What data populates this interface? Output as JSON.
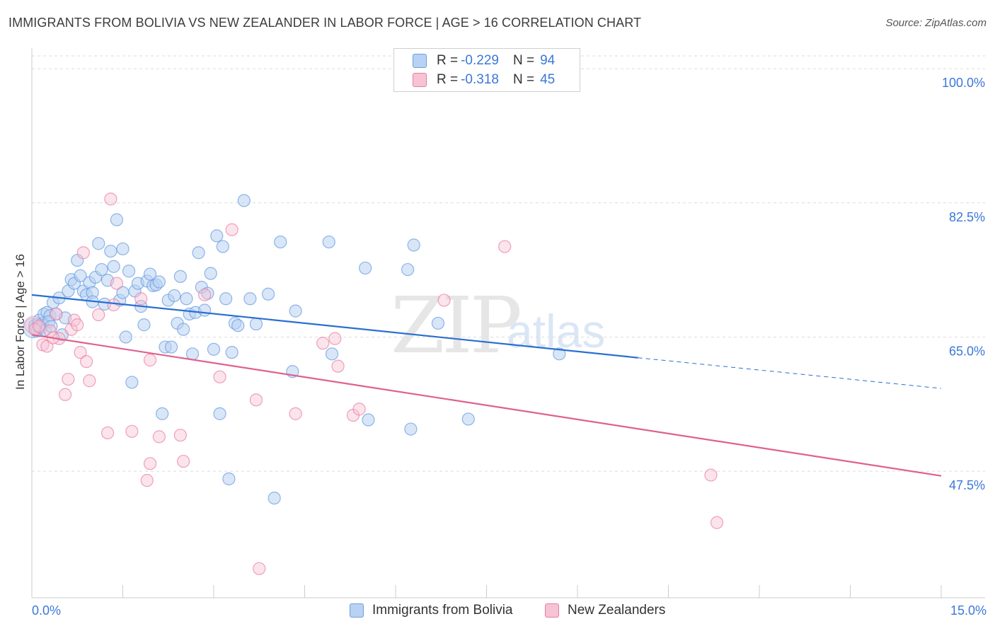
{
  "title": "IMMIGRANTS FROM BOLIVIA VS NEW ZEALANDER IN LABOR FORCE | AGE > 16 CORRELATION CHART",
  "source": "Source: ZipAtlas.com",
  "watermark": {
    "zip": "ZIP",
    "atlas": "atlas"
  },
  "colors": {
    "blue": "#6a9fe0",
    "blue_fill": "#b9d2f3",
    "pink": "#e87ca0",
    "pink_fill": "#f6c3d4",
    "blue_line": "#2a6fd0",
    "pink_line": "#e0608e",
    "axis_text": "#3a78d8"
  },
  "legend": {
    "rows": [
      {
        "r_label": "R =",
        "r_value": "-0.229",
        "n_label": "N =",
        "n_value": "94"
      },
      {
        "r_label": "R =",
        "r_value": "-0.318",
        "n_label": "N =",
        "n_value": "45"
      }
    ]
  },
  "bottom_legend": [
    "Immigrants from Bolivia",
    "New Zealanders"
  ],
  "chart_data": {
    "type": "scatter",
    "title": "IMMIGRANTS FROM BOLIVIA VS NEW ZEALANDER IN LABOR FORCE | AGE > 16 CORRELATION CHART",
    "xlabel": "",
    "ylabel": "In Labor Force | Age > 16",
    "xlim": [
      0,
      15
    ],
    "ylim": [
      31,
      102.5
    ],
    "x_tick_labels": [
      "0.0%",
      "15.0%"
    ],
    "y_ticks": [
      47.5,
      65.0,
      82.5,
      100.0
    ],
    "y_tick_labels": [
      "47.5%",
      "65.0%",
      "82.5%",
      "100.0%"
    ],
    "grid": true,
    "series": [
      {
        "name": "Immigrants from Bolivia",
        "points": [
          [
            0.05,
            66.5
          ],
          [
            0.1,
            66.6
          ],
          [
            0.12,
            67.2
          ],
          [
            0.18,
            66.8
          ],
          [
            0.2,
            68.0
          ],
          [
            0.25,
            68.2
          ],
          [
            0.3,
            67.8
          ],
          [
            0.35,
            69.5
          ],
          [
            0.4,
            68.0
          ],
          [
            0.45,
            70.1
          ],
          [
            0.5,
            65.3
          ],
          [
            0.55,
            67.5
          ],
          [
            0.6,
            71.0
          ],
          [
            0.65,
            72.5
          ],
          [
            0.7,
            72.0
          ],
          [
            0.75,
            75.0
          ],
          [
            0.8,
            73.0
          ],
          [
            0.85,
            71.0
          ],
          [
            0.9,
            70.5
          ],
          [
            0.95,
            72.1
          ],
          [
            1.0,
            70.8
          ],
          [
            1.0,
            69.6
          ],
          [
            1.05,
            72.8
          ],
          [
            1.1,
            77.2
          ],
          [
            1.15,
            73.8
          ],
          [
            1.2,
            69.3
          ],
          [
            1.25,
            72.4
          ],
          [
            1.3,
            76.2
          ],
          [
            1.35,
            74.2
          ],
          [
            1.4,
            80.3
          ],
          [
            1.45,
            69.8
          ],
          [
            1.5,
            76.5
          ],
          [
            1.5,
            70.8
          ],
          [
            1.55,
            65.0
          ],
          [
            1.6,
            73.6
          ],
          [
            1.65,
            59.1
          ],
          [
            1.7,
            71.0
          ],
          [
            1.75,
            72.0
          ],
          [
            1.8,
            69.0
          ],
          [
            1.85,
            66.6
          ],
          [
            1.9,
            72.3
          ],
          [
            1.95,
            73.2
          ],
          [
            2.0,
            71.7
          ],
          [
            2.05,
            71.8
          ],
          [
            2.1,
            72.2
          ],
          [
            2.15,
            55.0
          ],
          [
            2.2,
            63.7
          ],
          [
            2.25,
            69.8
          ],
          [
            2.3,
            63.7
          ],
          [
            2.35,
            70.4
          ],
          [
            2.4,
            66.8
          ],
          [
            2.45,
            72.9
          ],
          [
            2.5,
            66.0
          ],
          [
            2.55,
            70.0
          ],
          [
            2.6,
            68.0
          ],
          [
            2.65,
            62.8
          ],
          [
            2.7,
            68.2
          ],
          [
            2.75,
            76.0
          ],
          [
            2.8,
            71.5
          ],
          [
            2.85,
            68.5
          ],
          [
            2.9,
            70.7
          ],
          [
            2.95,
            73.3
          ],
          [
            3.0,
            63.4
          ],
          [
            3.05,
            78.2
          ],
          [
            3.1,
            55.0
          ],
          [
            3.15,
            76.8
          ],
          [
            3.2,
            70.0
          ],
          [
            3.25,
            46.5
          ],
          [
            3.3,
            63.0
          ],
          [
            3.35,
            66.8
          ],
          [
            3.4,
            66.5
          ],
          [
            3.5,
            82.8
          ],
          [
            3.6,
            70.0
          ],
          [
            3.7,
            66.7
          ],
          [
            3.9,
            70.6
          ],
          [
            4.0,
            44.0
          ],
          [
            4.1,
            77.4
          ],
          [
            4.3,
            60.5
          ],
          [
            4.35,
            68.4
          ],
          [
            4.9,
            77.4
          ],
          [
            4.95,
            62.8
          ],
          [
            5.5,
            74.0
          ],
          [
            5.55,
            54.2
          ],
          [
            6.2,
            73.8
          ],
          [
            6.25,
            53.0
          ],
          [
            6.3,
            77.0
          ],
          [
            6.7,
            66.8
          ],
          [
            7.2,
            54.3
          ],
          [
            8.7,
            62.8
          ],
          [
            0.08,
            65.8
          ],
          [
            0.15,
            66.2
          ],
          [
            0.22,
            65.9
          ],
          [
            0.28,
            67.0
          ],
          [
            0.32,
            66.4
          ]
        ]
      },
      {
        "name": "New Zealanders",
        "points": [
          [
            0.05,
            66.0
          ],
          [
            0.12,
            66.4
          ],
          [
            0.18,
            64.0
          ],
          [
            0.25,
            63.8
          ],
          [
            0.3,
            65.8
          ],
          [
            0.4,
            68.0
          ],
          [
            0.45,
            64.8
          ],
          [
            0.55,
            57.5
          ],
          [
            0.6,
            59.5
          ],
          [
            0.65,
            66.0
          ],
          [
            0.7,
            67.2
          ],
          [
            0.75,
            66.6
          ],
          [
            0.8,
            63.0
          ],
          [
            0.85,
            76.0
          ],
          [
            0.9,
            61.8
          ],
          [
            0.95,
            59.3
          ],
          [
            1.1,
            67.9
          ],
          [
            1.25,
            52.5
          ],
          [
            1.3,
            83.0
          ],
          [
            1.35,
            69.2
          ],
          [
            1.4,
            72.0
          ],
          [
            1.65,
            52.7
          ],
          [
            1.8,
            70.0
          ],
          [
            1.9,
            46.3
          ],
          [
            1.95,
            62.0
          ],
          [
            1.95,
            48.5
          ],
          [
            2.1,
            52.0
          ],
          [
            2.45,
            52.2
          ],
          [
            2.5,
            48.8
          ],
          [
            2.85,
            70.5
          ],
          [
            3.1,
            59.8
          ],
          [
            3.3,
            79.0
          ],
          [
            3.7,
            56.8
          ],
          [
            3.75,
            34.8
          ],
          [
            4.35,
            55.0
          ],
          [
            5.0,
            64.8
          ],
          [
            5.05,
            61.2
          ],
          [
            5.3,
            54.8
          ],
          [
            5.4,
            55.6
          ],
          [
            6.8,
            69.8
          ],
          [
            7.8,
            76.8
          ],
          [
            11.2,
            47.0
          ],
          [
            11.3,
            40.8
          ],
          [
            4.8,
            64.2
          ],
          [
            0.35,
            64.9
          ]
        ]
      }
    ],
    "trend_lines": [
      {
        "series": "Immigrants from Bolivia",
        "x": [
          0.0,
          10.0
        ],
        "y": [
          70.5,
          62.3
        ],
        "dashed_to": [
          15.0,
          58.3
        ]
      },
      {
        "series": "New Zealanders",
        "x": [
          0.0,
          15.0
        ],
        "y": [
          65.3,
          46.9
        ]
      }
    ]
  }
}
